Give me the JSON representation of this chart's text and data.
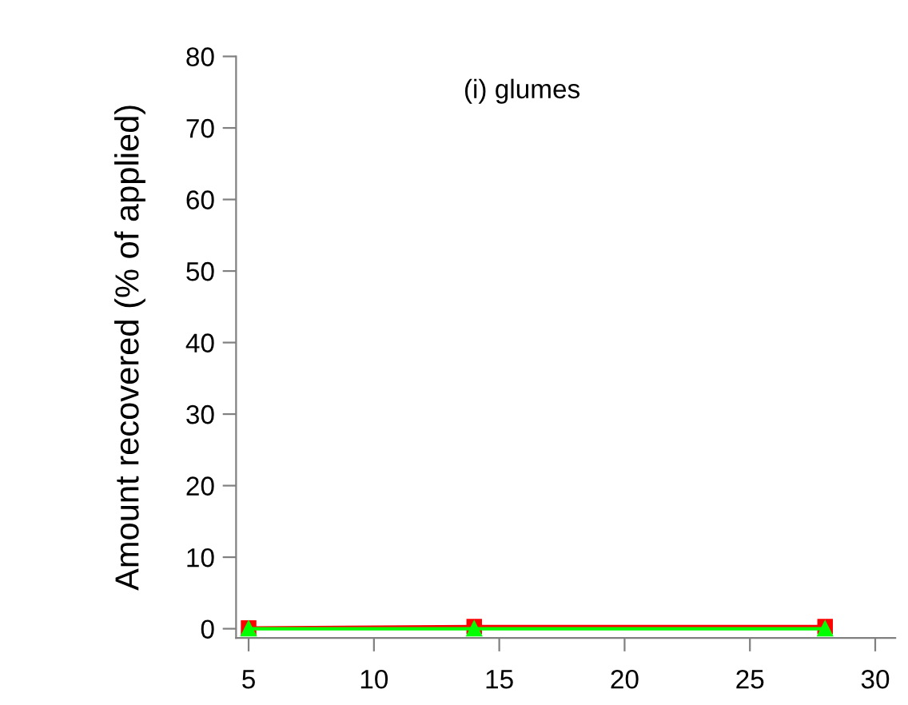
{
  "chart_data": {
    "type": "line",
    "ylabel": "Amount recovered (% of applied)",
    "annotations": [
      "(i) glumes"
    ],
    "x": [
      5,
      14,
      28
    ],
    "series": [
      {
        "color": "#ff0000",
        "values": [
          0.1,
          0.3,
          0.3
        ],
        "marker": "square"
      },
      {
        "color": "#00ff00",
        "values": [
          0,
          0,
          0
        ],
        "marker": "triangle"
      }
    ],
    "xlim": [
      4.5,
      30.8
    ],
    "ylim": [
      -1.3,
      80
    ],
    "xticks": [
      5,
      10,
      15,
      20,
      25,
      30
    ],
    "yticks": [
      0,
      10,
      20,
      30,
      40,
      50,
      60,
      70,
      80
    ],
    "grid": false,
    "line_style": "solid"
  }
}
